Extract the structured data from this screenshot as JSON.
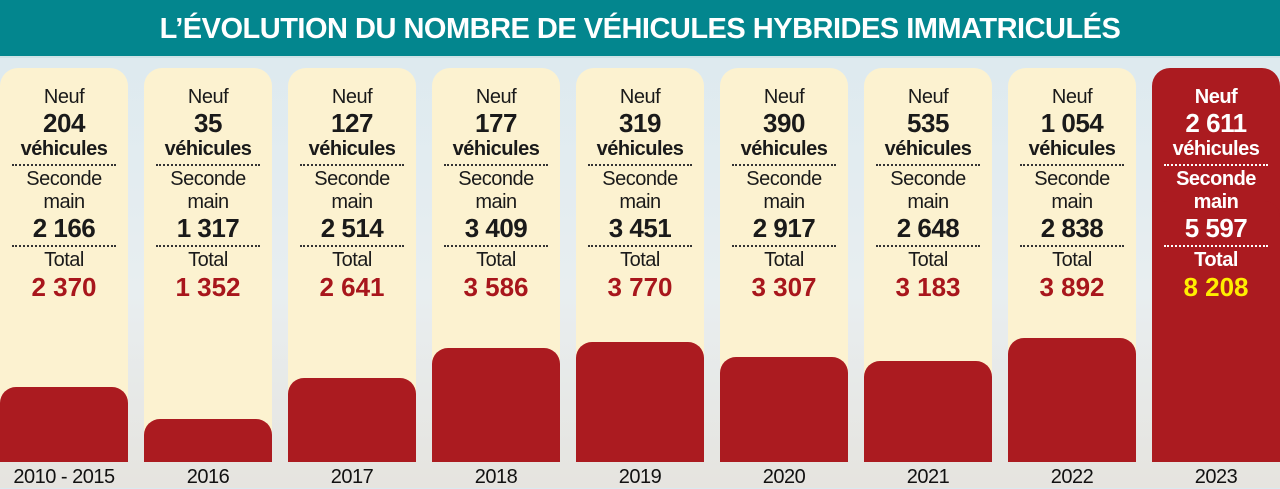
{
  "title": "L’ÉVOLUTION DU NOMBRE DE VÉHICULES HYBRIDES IMMATRICULÉS",
  "labels": {
    "neuf": "Neuf",
    "vehicules": "véhicules",
    "seconde": "Seconde",
    "main": "main",
    "total": "Total"
  },
  "colors": {
    "header": "#03868e",
    "bar": "#ab1b20",
    "card": "#fcf2d0",
    "highlight_total": "#ffee00"
  },
  "chart_data": {
    "type": "bar",
    "title": "L’ÉVOLUTION DU NOMBRE DE VÉHICULES HYBRIDES IMMATRICULÉS",
    "categories": [
      "2010 - 2015",
      "2016",
      "2017",
      "2018",
      "2019",
      "2020",
      "2021",
      "2022",
      "2023"
    ],
    "series": [
      {
        "name": "Neuf",
        "values": [
          204,
          35,
          127,
          177,
          319,
          390,
          535,
          1054,
          2611
        ],
        "labels": [
          "204",
          "35",
          "127",
          "177",
          "319",
          "390",
          "535",
          "1 054",
          "2 611"
        ]
      },
      {
        "name": "Seconde main",
        "values": [
          2166,
          1317,
          2514,
          3409,
          3451,
          2917,
          2648,
          2838,
          5597
        ],
        "labels": [
          "2 166",
          "1 317",
          "2 514",
          "3 409",
          "3 451",
          "2 917",
          "2 648",
          "2 838",
          "5 597"
        ]
      },
      {
        "name": "Total",
        "values": [
          2370,
          1352,
          2641,
          3586,
          3770,
          3307,
          3183,
          3892,
          8208
        ],
        "labels": [
          "2 370",
          "1 352",
          "2 641",
          "3 586",
          "3 770",
          "3 307",
          "3 183",
          "3 892",
          "8 208"
        ]
      }
    ],
    "highlight": "2023",
    "xlabel": "",
    "ylabel": ""
  }
}
